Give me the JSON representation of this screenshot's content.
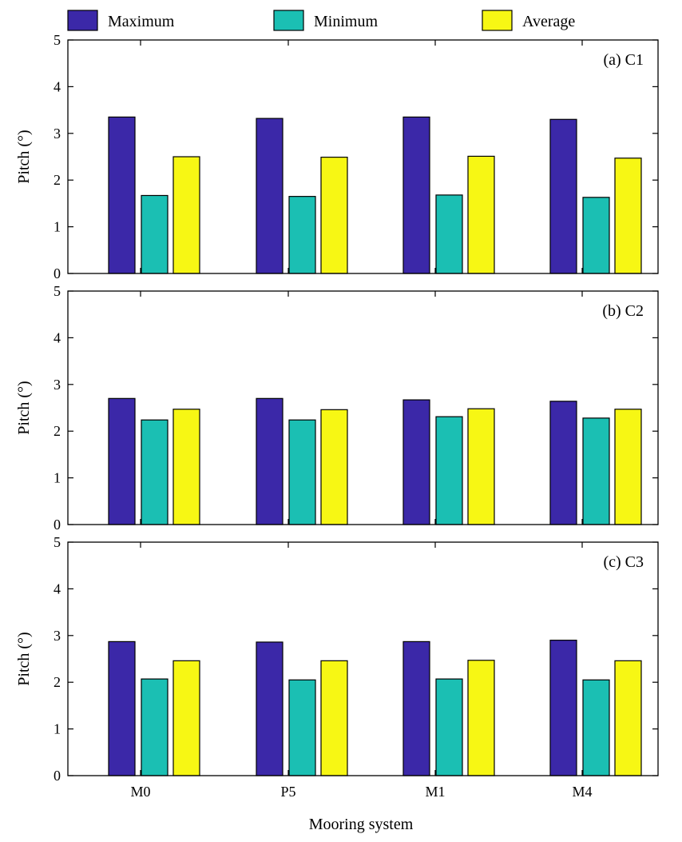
{
  "chart_data": {
    "type": "bar",
    "xlabel": "Mooring system",
    "ylabel": "Pitch (°)",
    "categories": [
      "M0",
      "P5",
      "M1",
      "M4"
    ],
    "ylim": [
      0,
      5
    ],
    "yticks": [
      0,
      1,
      2,
      3,
      4,
      5
    ],
    "legend": {
      "placement": "top",
      "entries": [
        {
          "name": "Maximum",
          "color": "#3b28a8"
        },
        {
          "name": "Minimum",
          "color": "#1bbfb3"
        },
        {
          "name": "Average",
          "color": "#f7f714"
        }
      ]
    },
    "panels": [
      {
        "label": "(a) C1",
        "series": [
          {
            "name": "Maximum",
            "values": [
              3.35,
              3.32,
              3.35,
              3.3
            ]
          },
          {
            "name": "Minimum",
            "values": [
              1.67,
              1.65,
              1.68,
              1.63
            ]
          },
          {
            "name": "Average",
            "values": [
              2.5,
              2.49,
              2.51,
              2.47
            ]
          }
        ]
      },
      {
        "label": "(b) C2",
        "series": [
          {
            "name": "Maximum",
            "values": [
              2.7,
              2.7,
              2.67,
              2.64
            ]
          },
          {
            "name": "Minimum",
            "values": [
              2.24,
              2.24,
              2.31,
              2.28
            ]
          },
          {
            "name": "Average",
            "values": [
              2.47,
              2.46,
              2.48,
              2.47
            ]
          }
        ]
      },
      {
        "label": "(c) C3",
        "series": [
          {
            "name": "Maximum",
            "values": [
              2.87,
              2.86,
              2.87,
              2.9
            ]
          },
          {
            "name": "Minimum",
            "values": [
              2.07,
              2.05,
              2.07,
              2.05
            ]
          },
          {
            "name": "Average",
            "values": [
              2.46,
              2.46,
              2.47,
              2.46
            ]
          }
        ]
      }
    ]
  }
}
